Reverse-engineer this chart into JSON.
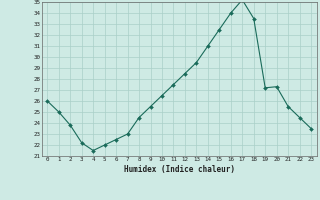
{
  "x": [
    0,
    1,
    2,
    3,
    4,
    5,
    6,
    7,
    8,
    9,
    10,
    11,
    12,
    13,
    14,
    15,
    16,
    17,
    18,
    19,
    20,
    21,
    22,
    23
  ],
  "y": [
    26.0,
    25.0,
    23.8,
    22.2,
    21.5,
    22.0,
    22.5,
    23.0,
    24.5,
    25.5,
    26.5,
    27.5,
    28.5,
    29.5,
    31.0,
    32.5,
    34.0,
    35.2,
    33.5,
    27.2,
    27.3,
    25.5,
    24.5,
    23.5
  ],
  "ylim": [
    21,
    35
  ],
  "yticks": [
    21,
    22,
    23,
    24,
    25,
    26,
    27,
    28,
    29,
    30,
    31,
    32,
    33,
    34,
    35
  ],
  "xlabel": "Humidex (Indice chaleur)",
  "line_color": "#1a6b5a",
  "marker_color": "#1a6b5a",
  "bg_color": "#ceeae4",
  "grid_color": "#aacfc8"
}
